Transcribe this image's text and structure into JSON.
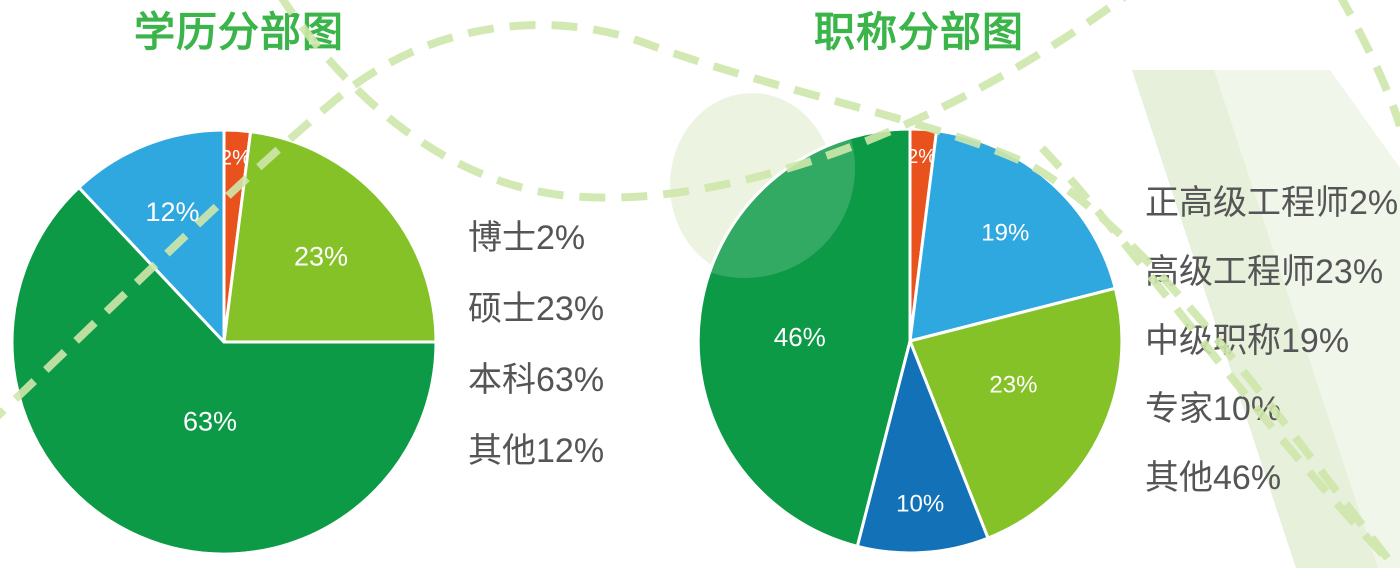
{
  "page": {
    "background": "#ffffff"
  },
  "decor": {
    "dash_color": "#cfe7ab",
    "band_color": "#f0f6e9",
    "band_inner_color": "#e7f0da",
    "circle_color": "#e9f2dc",
    "pie_divider_color": "#ffffff"
  },
  "chart_data": [
    {
      "type": "pie",
      "title": "学历分部图",
      "title_color": "#3bb54a",
      "legend_text_color": "#555456",
      "unit": "%",
      "direction": "clockwise_from_top",
      "start_angle_deg": 0,
      "slices": [
        {
          "name": "博士",
          "value": 2,
          "color": "#e9511d",
          "slice_label": "2%",
          "label_rf": 0.87,
          "label_size": 21
        },
        {
          "name": "硕士",
          "value": 23,
          "color": "#85c227",
          "slice_label": "23%",
          "label_rf": 0.61,
          "label_size": 27
        },
        {
          "name": "本科",
          "value": 63,
          "color": "#0c9a47",
          "slice_label": "63%",
          "label_rf": 0.38,
          "label_angle": 190,
          "label_size": 27
        },
        {
          "name": "其他",
          "value": 12,
          "color": "#2fa8df",
          "slice_label": "12%",
          "label_rf": 0.66,
          "label_size": 27
        }
      ],
      "legend": [
        "博士2%",
        "硕士23%",
        "本科63%",
        "其他12%"
      ],
      "legend_position": "right-of-chart"
    },
    {
      "type": "pie",
      "title": "职称分部图",
      "title_color": "#3bb54a",
      "legend_text_color": "#555456",
      "unit": "%",
      "direction": "clockwise_from_top",
      "start_angle_deg": 0,
      "slices": [
        {
          "name": "正高级工程师",
          "value": 2,
          "color": "#e9511d",
          "slice_label": "2%",
          "label_rf": 0.87,
          "label_size": 20
        },
        {
          "name": "中级职称",
          "value": 19,
          "color": "#2fa8df",
          "slice_label": "19%",
          "label_rf": 0.68,
          "label_size": 24
        },
        {
          "name": "高级工程师",
          "value": 23,
          "color": "#85c227",
          "slice_label": "23%",
          "label_rf": 0.53,
          "label_angle": 113,
          "label_size": 24
        },
        {
          "name": "专家",
          "value": 10,
          "color": "#1271b7",
          "slice_label": "10%",
          "label_rf": 0.77,
          "label_size": 24
        },
        {
          "name": "其他",
          "value": 46,
          "color": "#0c9a47",
          "slice_label": "46%",
          "label_rf": 0.52,
          "label_angle": 272,
          "label_size": 26
        }
      ],
      "legend": [
        "正高级工程师2%",
        "高级工程师23%",
        "中级职称19%",
        "专家10%",
        "其他46%"
      ],
      "legend_position": "right-of-chart"
    }
  ]
}
